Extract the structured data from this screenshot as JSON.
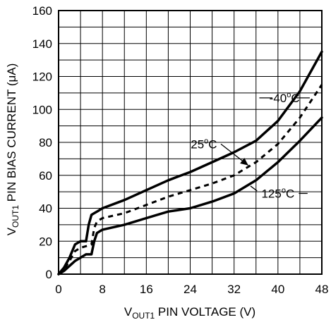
{
  "chart_data": {
    "type": "line",
    "xlabel": {
      "main": "V",
      "sub": "OUT1",
      "rest": " PIN VOLTAGE (V)"
    },
    "ylabel": {
      "main": "V",
      "sub": "OUT1",
      "rest": " PIN BIAS CURRENT (μA)"
    },
    "xlim": [
      0,
      48
    ],
    "ylim": [
      0,
      160
    ],
    "x_ticks": [
      "0",
      "8",
      "16",
      "24",
      "32",
      "40",
      "48"
    ],
    "y_ticks": [
      "0",
      "20",
      "40",
      "60",
      "80",
      "100",
      "120",
      "140",
      "160"
    ],
    "grid": true,
    "series": [
      {
        "name": "-40°C",
        "label_parts": {
          "pre": "-40",
          "sup": "o",
          "post": "C"
        },
        "style": "solid",
        "x": [
          0,
          1,
          2,
          3,
          4,
          5,
          5.5,
          6,
          6.5,
          7,
          8,
          12,
          16,
          20,
          24,
          28,
          32,
          36,
          40,
          44,
          48
        ],
        "y": [
          0,
          4,
          10,
          18,
          20,
          20,
          30,
          36,
          37,
          38,
          40,
          45,
          51,
          57,
          62,
          68,
          74,
          81,
          93,
          111,
          135
        ]
      },
      {
        "name": "25°C",
        "label_parts": {
          "pre": "25",
          "sup": "o",
          "post": "C"
        },
        "style": "dashed",
        "x": [
          0,
          1,
          2,
          3,
          4,
          5,
          6,
          6.5,
          7,
          8,
          12,
          16,
          20,
          24,
          28,
          32,
          34,
          36,
          40,
          44,
          48
        ],
        "y": [
          0,
          3,
          8,
          14,
          16,
          17,
          18,
          28,
          32,
          34,
          37,
          42,
          47,
          51,
          55,
          60,
          64,
          68,
          79,
          95,
          115
        ]
      },
      {
        "name": "125°C",
        "label_parts": {
          "pre": "125",
          "sup": "o",
          "post": "C"
        },
        "style": "solid",
        "x": [
          0,
          1,
          2,
          3,
          4,
          5,
          6,
          6.5,
          7,
          8,
          12,
          16,
          20,
          24,
          28,
          32,
          36,
          40,
          44,
          48
        ],
        "y": [
          0,
          2,
          5,
          8,
          10,
          12,
          12,
          20,
          25,
          27,
          30,
          34,
          38,
          40,
          44,
          49,
          57,
          68,
          81,
          95
        ]
      }
    ]
  }
}
